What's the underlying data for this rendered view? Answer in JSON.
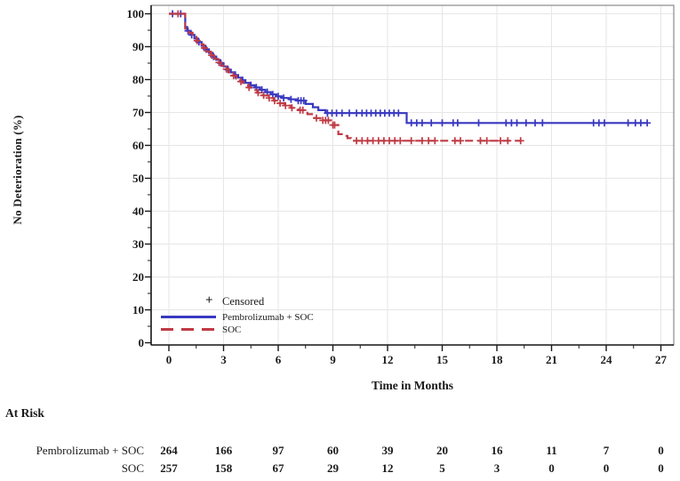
{
  "chart_data": {
    "type": "line",
    "subtype": "kaplan-meier-step",
    "title": "",
    "xlabel": "Time in Months",
    "ylabel": "No Deterioration (%)",
    "xlim": [
      0,
      27
    ],
    "ylim": [
      0,
      100
    ],
    "xticks": [
      0,
      3,
      6,
      9,
      12,
      15,
      18,
      21,
      24,
      27
    ],
    "yticks": [
      0,
      10,
      20,
      30,
      40,
      50,
      60,
      70,
      80,
      90,
      100
    ],
    "x_minor_tick_step": 1.5,
    "y_minor_tick_step": 5,
    "grid": true,
    "legend": {
      "position": "bottom-left-inside",
      "censored_marker": "+",
      "censored_label": "Censored"
    },
    "style": {
      "grid_color": "#e6e6e6",
      "frame_color": "#8a8a8a",
      "axis_color": "#1a1a1a",
      "text_color": "#1a1a1a"
    },
    "series": [
      {
        "name": "Pembrolizumab + SOC",
        "color": "#3838c0",
        "line_style": "solid",
        "end_t": 26.3,
        "steps": [
          [
            0,
            100
          ],
          [
            0.9,
            96
          ],
          [
            1.0,
            94.8
          ],
          [
            1.2,
            93.6
          ],
          [
            1.4,
            92.5
          ],
          [
            1.6,
            91.4
          ],
          [
            1.8,
            90.3
          ],
          [
            2.0,
            89.2
          ],
          [
            2.2,
            88.1
          ],
          [
            2.4,
            87.0
          ],
          [
            2.6,
            86.0
          ],
          [
            2.8,
            85.0
          ],
          [
            3.0,
            84.0
          ],
          [
            3.2,
            83.0
          ],
          [
            3.4,
            82.2
          ],
          [
            3.6,
            81.4
          ],
          [
            3.8,
            80.6
          ],
          [
            4.0,
            79.8
          ],
          [
            4.2,
            79.0
          ],
          [
            4.45,
            78.3
          ],
          [
            4.7,
            77.6
          ],
          [
            5.0,
            76.9
          ],
          [
            5.3,
            76.2
          ],
          [
            5.6,
            75.5
          ],
          [
            5.9,
            74.9
          ],
          [
            6.2,
            74.4
          ],
          [
            6.6,
            74.0
          ],
          [
            7.0,
            73.6
          ],
          [
            7.5,
            72.6
          ],
          [
            7.9,
            71.6
          ],
          [
            8.2,
            70.7
          ],
          [
            8.6,
            69.8
          ],
          [
            13.05,
            66.8
          ]
        ],
        "censors": [
          [
            0.2,
            100
          ],
          [
            0.65,
            100
          ],
          [
            1.05,
            94.8
          ],
          [
            1.25,
            93.6
          ],
          [
            1.65,
            91.4
          ],
          [
            2.05,
            89.2
          ],
          [
            2.45,
            87.0
          ],
          [
            2.85,
            85.0
          ],
          [
            3.25,
            83.0
          ],
          [
            3.65,
            81.4
          ],
          [
            4.05,
            79.8
          ],
          [
            4.5,
            78.3
          ],
          [
            4.8,
            77.6
          ],
          [
            5.1,
            76.9
          ],
          [
            5.4,
            76.2
          ],
          [
            5.7,
            75.5
          ],
          [
            6.0,
            74.9
          ],
          [
            6.3,
            74.4
          ],
          [
            6.7,
            74.0
          ],
          [
            7.1,
            73.6
          ],
          [
            7.25,
            73.6
          ],
          [
            7.4,
            73.6
          ],
          [
            8.7,
            69.8
          ],
          [
            8.95,
            69.8
          ],
          [
            9.2,
            69.8
          ],
          [
            9.5,
            69.8
          ],
          [
            9.9,
            69.8
          ],
          [
            10.3,
            69.8
          ],
          [
            10.6,
            69.8
          ],
          [
            10.85,
            69.8
          ],
          [
            11.1,
            69.8
          ],
          [
            11.35,
            69.8
          ],
          [
            11.6,
            69.8
          ],
          [
            11.85,
            69.8
          ],
          [
            12.1,
            69.8
          ],
          [
            12.35,
            69.8
          ],
          [
            12.6,
            69.8
          ],
          [
            13.3,
            66.8
          ],
          [
            13.6,
            66.8
          ],
          [
            13.9,
            66.8
          ],
          [
            14.4,
            66.8
          ],
          [
            15.0,
            66.8
          ],
          [
            15.6,
            66.8
          ],
          [
            15.85,
            66.8
          ],
          [
            17.0,
            66.8
          ],
          [
            18.5,
            66.8
          ],
          [
            18.8,
            66.8
          ],
          [
            19.1,
            66.8
          ],
          [
            19.6,
            66.8
          ],
          [
            20.1,
            66.8
          ],
          [
            20.5,
            66.8
          ],
          [
            23.3,
            66.8
          ],
          [
            23.6,
            66.8
          ],
          [
            23.9,
            66.8
          ],
          [
            25.2,
            66.8
          ],
          [
            25.6,
            66.8
          ],
          [
            25.9,
            66.8
          ],
          [
            26.25,
            66.8
          ]
        ]
      },
      {
        "name": "SOC",
        "color": "#bf3a44",
        "line_style": "dashed",
        "end_t": 19.35,
        "steps": [
          [
            0,
            100
          ],
          [
            0.9,
            95.5
          ],
          [
            1.1,
            94.2
          ],
          [
            1.3,
            93.0
          ],
          [
            1.5,
            91.8
          ],
          [
            1.7,
            90.7
          ],
          [
            1.9,
            89.6
          ],
          [
            2.1,
            88.5
          ],
          [
            2.3,
            87.4
          ],
          [
            2.5,
            86.3
          ],
          [
            2.7,
            85.2
          ],
          [
            2.9,
            84.2
          ],
          [
            3.1,
            83.2
          ],
          [
            3.3,
            82.2
          ],
          [
            3.5,
            81.2
          ],
          [
            3.7,
            80.3
          ],
          [
            3.9,
            79.4
          ],
          [
            4.1,
            78.5
          ],
          [
            4.35,
            77.6
          ],
          [
            4.6,
            76.8
          ],
          [
            4.85,
            76.0
          ],
          [
            5.15,
            75.2
          ],
          [
            5.45,
            74.4
          ],
          [
            5.75,
            73.6
          ],
          [
            6.05,
            72.8
          ],
          [
            6.35,
            72.1
          ],
          [
            6.7,
            71.4
          ],
          [
            7.1,
            70.7
          ],
          [
            7.6,
            69.5
          ],
          [
            8.0,
            68.3
          ],
          [
            8.4,
            67.6
          ],
          [
            8.9,
            66.2
          ],
          [
            9.3,
            63.4
          ],
          [
            9.6,
            62.9
          ],
          [
            9.8,
            62.2
          ],
          [
            10.0,
            61.4
          ]
        ],
        "censors": [
          [
            0.5,
            100
          ],
          [
            1.55,
            91.8
          ],
          [
            1.95,
            89.6
          ],
          [
            2.35,
            87.4
          ],
          [
            2.75,
            85.2
          ],
          [
            3.15,
            83.2
          ],
          [
            3.55,
            81.2
          ],
          [
            3.95,
            79.4
          ],
          [
            4.4,
            77.6
          ],
          [
            4.9,
            76.0
          ],
          [
            5.2,
            75.2
          ],
          [
            5.5,
            74.4
          ],
          [
            5.8,
            73.6
          ],
          [
            6.1,
            72.8
          ],
          [
            6.4,
            72.1
          ],
          [
            6.75,
            71.4
          ],
          [
            7.2,
            70.7
          ],
          [
            7.35,
            70.7
          ],
          [
            8.1,
            68.3
          ],
          [
            8.45,
            67.6
          ],
          [
            8.6,
            67.6
          ],
          [
            8.75,
            67.6
          ],
          [
            9.0,
            66.2
          ],
          [
            9.1,
            66.2
          ],
          [
            10.3,
            61.4
          ],
          [
            10.6,
            61.4
          ],
          [
            10.9,
            61.4
          ],
          [
            11.2,
            61.4
          ],
          [
            11.5,
            61.4
          ],
          [
            11.8,
            61.4
          ],
          [
            12.1,
            61.4
          ],
          [
            12.4,
            61.4
          ],
          [
            12.7,
            61.4
          ],
          [
            13.3,
            61.4
          ],
          [
            13.9,
            61.4
          ],
          [
            14.25,
            61.4
          ],
          [
            14.6,
            61.4
          ],
          [
            15.7,
            61.4
          ],
          [
            16.0,
            61.4
          ],
          [
            17.1,
            61.4
          ],
          [
            17.45,
            61.4
          ],
          [
            18.2,
            61.4
          ],
          [
            18.6,
            61.4
          ],
          [
            19.3,
            61.4
          ]
        ]
      }
    ],
    "at_risk": {
      "title": "At Risk",
      "times": [
        0,
        3,
        6,
        9,
        12,
        15,
        18,
        21,
        24,
        27
      ],
      "rows": [
        {
          "label": "Pembrolizumab + SOC",
          "counts": [
            264,
            166,
            97,
            60,
            39,
            20,
            16,
            11,
            7,
            0
          ]
        },
        {
          "label": "SOC",
          "counts": [
            257,
            158,
            67,
            29,
            12,
            5,
            3,
            0,
            0,
            0
          ]
        }
      ]
    }
  }
}
